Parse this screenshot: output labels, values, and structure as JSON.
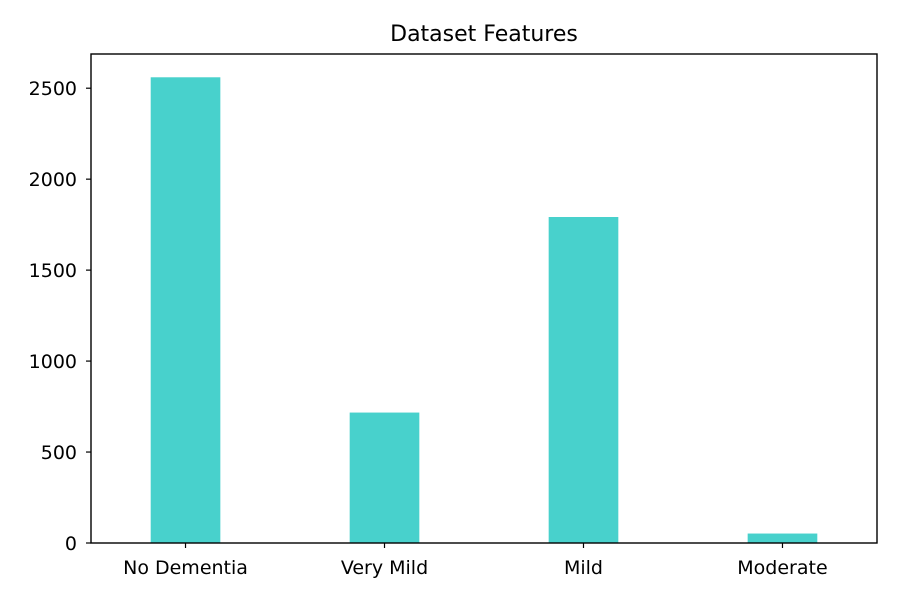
{
  "chart_data": {
    "type": "bar",
    "title": "Dataset Features",
    "xlabel": "",
    "ylabel": "",
    "categories": [
      "No Dementia",
      "Very Mild",
      "Mild",
      "Moderate"
    ],
    "values": [
      2560,
      717,
      1792,
      52
    ],
    "ylim": [
      0,
      2688
    ],
    "yticks": [
      0,
      500,
      1000,
      1500,
      2000,
      2500
    ],
    "bar_color": "#48D1CC",
    "grid": false,
    "legend": false
  }
}
